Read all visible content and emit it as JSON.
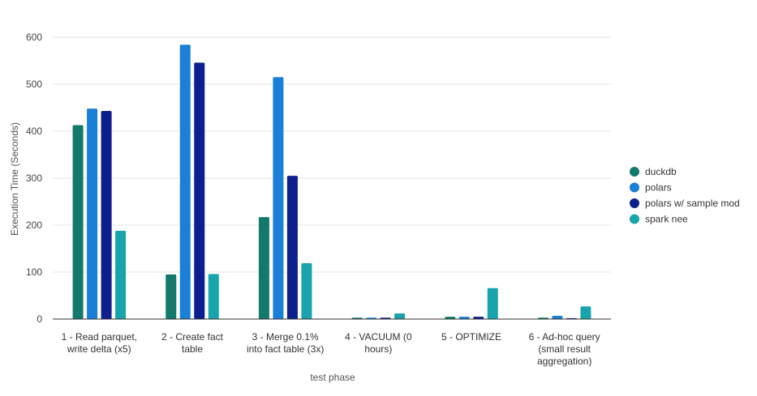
{
  "chart_data": {
    "type": "bar",
    "xlabel": "test phase",
    "ylabel": "Execution Time (Seconds)",
    "ylim": [
      0,
      600
    ],
    "yticks": [
      0,
      100,
      200,
      300,
      400,
      500,
      600
    ],
    "grid": true,
    "legend_position": "right",
    "categories": [
      [
        "1 - Read parquet,",
        "write delta (x5)"
      ],
      [
        "2 - Create fact",
        "table"
      ],
      [
        "3 - Merge 0.1%",
        "into fact table (3x)"
      ],
      [
        "4 - VACUUM (0",
        "hours)"
      ],
      [
        "5 - OPTIMIZE"
      ],
      [
        "6 - Ad-hoc query",
        "(small result",
        "aggregation)"
      ]
    ],
    "series": [
      {
        "name": "duckdb",
        "color": "#12796b",
        "values": [
          413,
          95,
          217,
          3,
          5,
          3
        ]
      },
      {
        "name": "polars",
        "color": "#1a7fd6",
        "values": [
          448,
          584,
          515,
          3,
          5,
          7
        ]
      },
      {
        "name": "polars w/ sample mod",
        "color": "#0d1f8c",
        "values": [
          443,
          546,
          305,
          3,
          5,
          2
        ]
      },
      {
        "name": "spark nee",
        "color": "#18a3ad",
        "values": [
          188,
          96,
          119,
          12,
          66,
          27
        ]
      }
    ]
  }
}
